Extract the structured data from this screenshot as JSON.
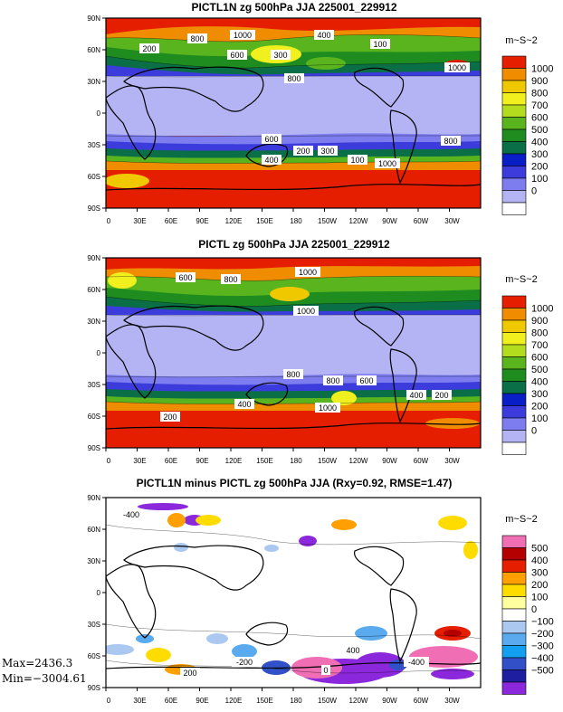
{
  "chart_data": [
    {
      "type": "map",
      "title": "PICTL1N zg 500hPa JJA 225001_229912",
      "units": "m~S~2",
      "lat_ticks": [
        "90N",
        "60N",
        "30N",
        "0",
        "30S",
        "60S",
        "90S"
      ],
      "lon_ticks": [
        "0",
        "30E",
        "60E",
        "90E",
        "120E",
        "150E",
        "180",
        "150W",
        "120W",
        "90W",
        "60W",
        "30W"
      ],
      "colorbar_levels": [
        "1000",
        "900",
        "800",
        "700",
        "600",
        "500",
        "400",
        "300",
        "200",
        "100",
        "0"
      ],
      "contour_labels": [
        "1000",
        "800",
        "600",
        "400",
        "200",
        "300",
        "100"
      ]
    },
    {
      "type": "map",
      "title": "PICTL zg 500hPa JJA 225001_229912",
      "units": "m~S~2",
      "lat_ticks": [
        "90N",
        "60N",
        "30N",
        "0",
        "30S",
        "60S",
        "90S"
      ],
      "lon_ticks": [
        "0",
        "30E",
        "60E",
        "90E",
        "120E",
        "150E",
        "180",
        "150W",
        "120W",
        "90W",
        "60W",
        "30W"
      ],
      "colorbar_levels": [
        "1000",
        "900",
        "800",
        "700",
        "600",
        "500",
        "400",
        "300",
        "200",
        "100",
        "0"
      ],
      "contour_labels": [
        "1000",
        "800",
        "600",
        "400",
        "200"
      ]
    },
    {
      "type": "map",
      "title": "PICTL1N minus PICTL zg 500hPa JJA (Rxy=0.92, RMSE=1.47)",
      "units": "m~S~2",
      "lat_ticks": [
        "90N",
        "60N",
        "30N",
        "0",
        "30S",
        "60S",
        "90S"
      ],
      "lon_ticks": [
        "0",
        "30E",
        "60E",
        "90E",
        "120E",
        "150E",
        "180",
        "150W",
        "120W",
        "90W",
        "60W",
        "30W"
      ],
      "colorbar_levels": [
        "500",
        "400",
        "300",
        "200",
        "100",
        "0",
        "−100",
        "−200",
        "−300",
        "−400",
        "−500"
      ],
      "contour_labels": [
        "-400",
        "200",
        "-200",
        "0",
        "400"
      ]
    }
  ],
  "stats": {
    "max": "Max=2436.3",
    "min": "Min=−3004.61"
  },
  "colors": {
    "seq": [
      "#ffffff",
      "#b4b4f5",
      "#7d7df0",
      "#3c3cdc",
      "#0a1ec8",
      "#0a6e46",
      "#1e8c1e",
      "#5ab41e",
      "#b4dc1e",
      "#f0f01e",
      "#f0c800",
      "#f08c00",
      "#e61e00"
    ],
    "div": [
      "#ffffff",
      "#aac8f0",
      "#5aaaf0",
      "#14a0f0",
      "#3250c8",
      "#1e1ea0",
      "#8c28dc",
      "#ffffa0",
      "#ffdc00",
      "#ffa000",
      "#e61e00",
      "#b40000",
      "#f06eb4"
    ]
  }
}
